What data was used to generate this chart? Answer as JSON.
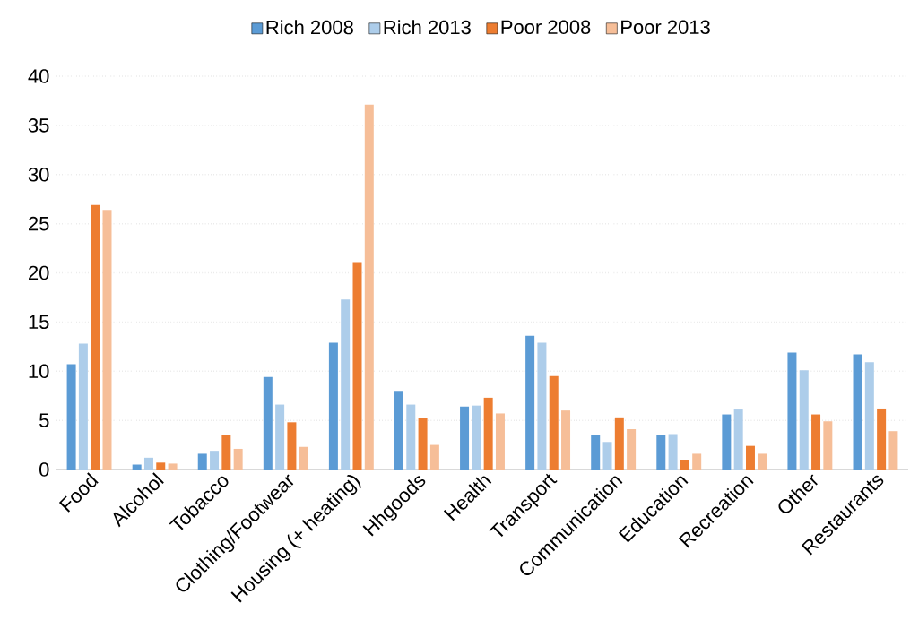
{
  "chart_data": {
    "type": "bar",
    "categories": [
      "Food",
      "Alcohol",
      "Tobacco",
      "Clothing/Footwear",
      "Housing (+ heating)",
      "Hhgoods",
      "Health",
      "Transport",
      "Communication",
      "Education",
      "Recreation",
      "Other",
      "Restaurants"
    ],
    "series": [
      {
        "name": "Rich 2008",
        "color": "#5b9bd5",
        "values": [
          10.7,
          0.5,
          1.6,
          9.4,
          12.9,
          8.0,
          6.4,
          13.6,
          3.5,
          3.5,
          5.6,
          11.9,
          11.7
        ]
      },
      {
        "name": "Rich 2013",
        "color": "#adcdea",
        "values": [
          12.8,
          1.2,
          1.9,
          6.6,
          17.3,
          6.6,
          6.5,
          12.9,
          2.8,
          3.6,
          6.1,
          10.1,
          10.9
        ]
      },
      {
        "name": "Poor 2008",
        "color": "#ed7d31",
        "values": [
          26.9,
          0.7,
          3.5,
          4.8,
          21.1,
          5.2,
          7.3,
          9.5,
          5.3,
          1.0,
          2.4,
          5.6,
          6.2
        ]
      },
      {
        "name": "Poor 2013",
        "color": "#f6be98",
        "values": [
          26.4,
          0.6,
          2.1,
          2.3,
          37.1,
          2.5,
          5.7,
          6.0,
          4.1,
          1.6,
          1.6,
          4.9,
          3.9
        ]
      }
    ],
    "ylim": [
      0,
      40
    ],
    "yticks": [
      0,
      5,
      10,
      15,
      20,
      25,
      30,
      35,
      40
    ],
    "grid": "y",
    "legend": "top"
  }
}
